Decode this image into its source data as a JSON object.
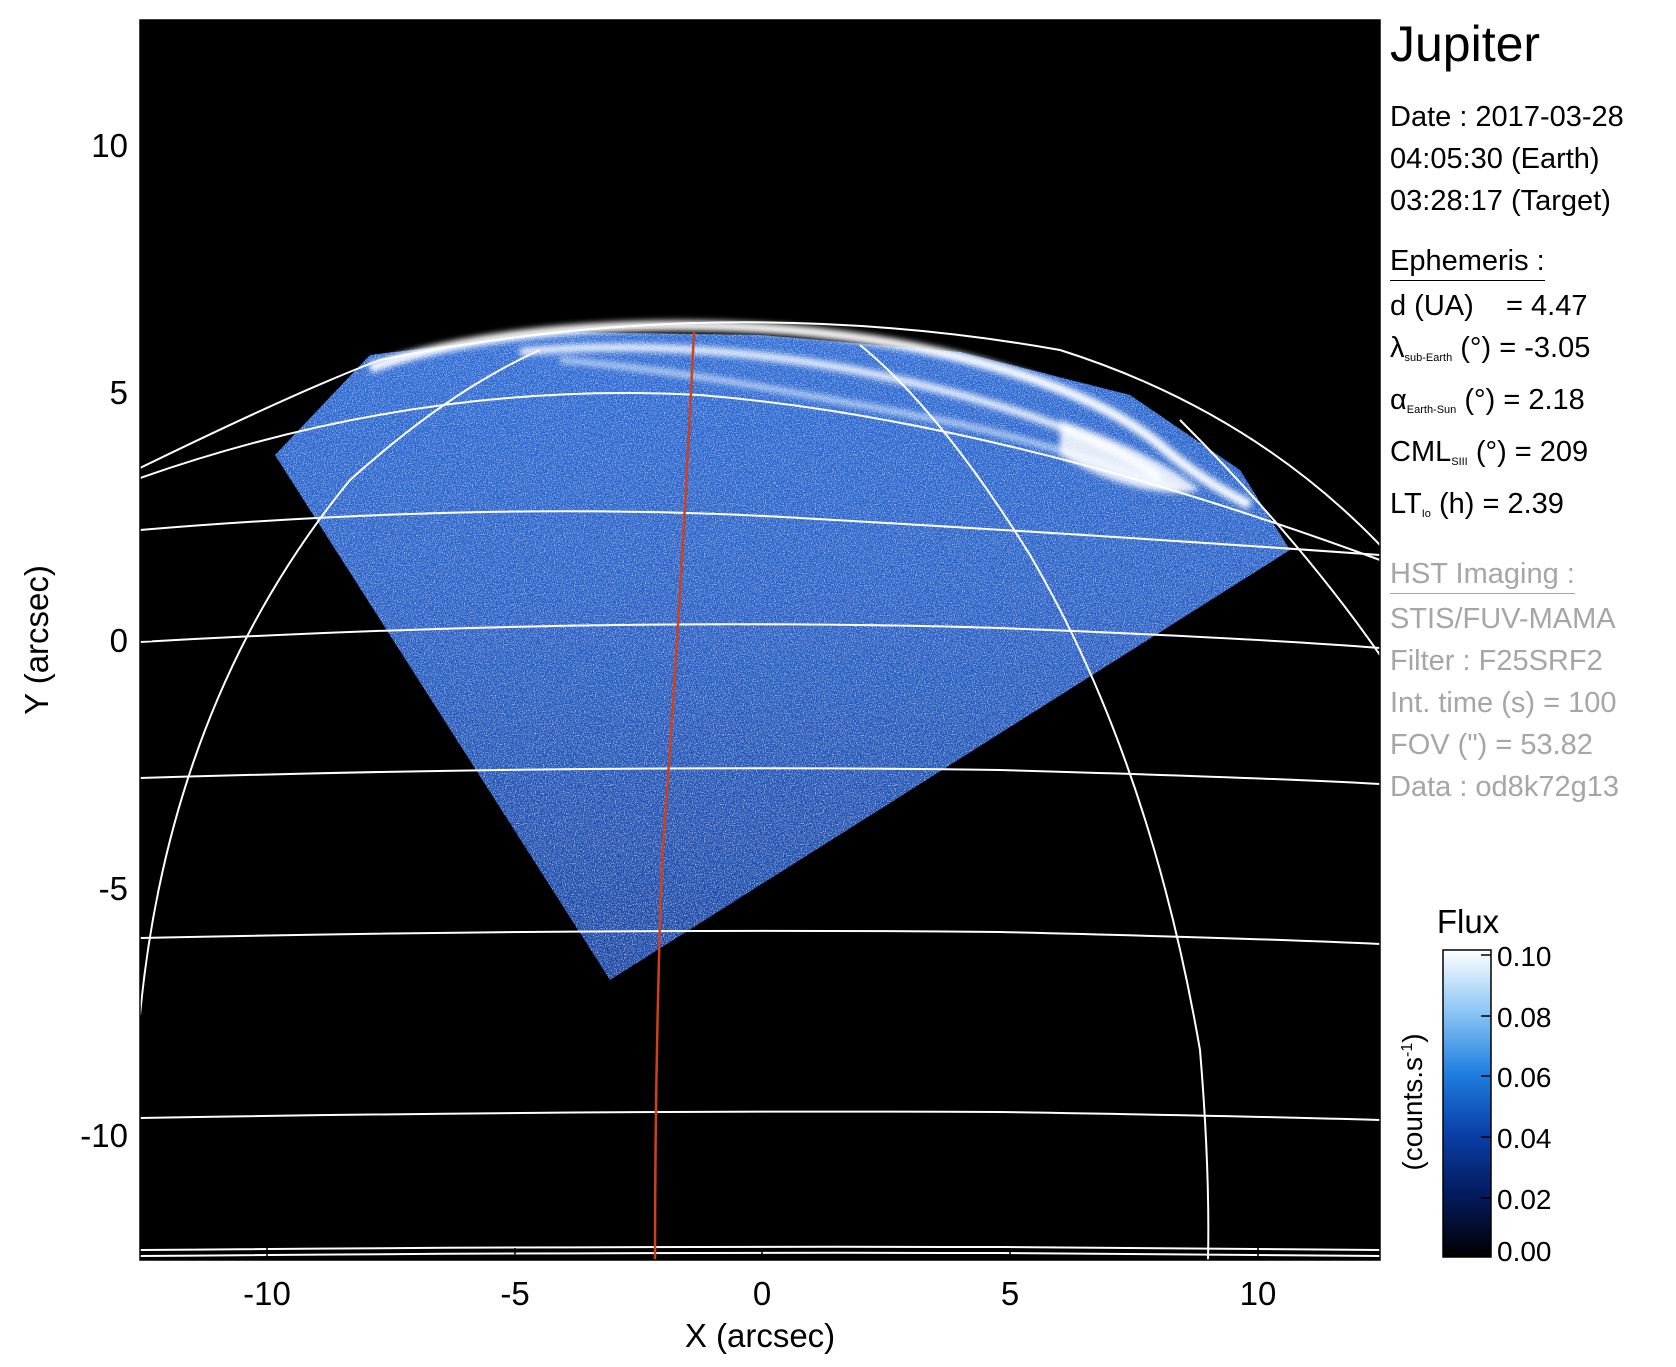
{
  "figure": {
    "x_axis_label": "X (arcsec)",
    "y_axis_label": "Y (arcsec)",
    "x_ticks": [
      "-10",
      "-5",
      "0",
      "5",
      "10"
    ],
    "y_ticks": [
      "10",
      "5",
      "0",
      "-5",
      "-10"
    ],
    "x_range": [
      -12.5,
      12.5
    ],
    "y_range": [
      -12.5,
      12.5
    ],
    "grid_color": "#ffffff",
    "meridian_color": "#d0401a",
    "background_color": "#000000",
    "emission_color": "#2a6bd6"
  },
  "info_panel": {
    "title": "Jupiter",
    "date_line": "Date : 2017-03-28",
    "time_earth": "04:05:30 (Earth)",
    "time_target": "03:28:17 (Target)",
    "ephemeris_heading": "Ephemeris :",
    "distance": {
      "label": "d (UA)",
      "value": "= 4.47"
    },
    "lambda": {
      "symbol": "λ",
      "subscript": "sub-Earth",
      "unit": "(°)",
      "value": "= -3.05"
    },
    "alpha": {
      "symbol": "α",
      "subscript": "Earth-Sun",
      "unit": "(°)",
      "value": "= 2.18"
    },
    "cml": {
      "symbol": "CML",
      "subscript": "SIII",
      "unit": "(°)",
      "value": "= 209"
    },
    "lt": {
      "symbol": "LT",
      "subscript": "Io",
      "unit": "(h)",
      "value": "= 2.39"
    },
    "hst_heading": "HST Imaging :",
    "instrument": "STIS/FUV-MAMA",
    "filter": "Filter : F25SRF2",
    "int_time": "Int. time (s) = 100",
    "fov": "FOV (\") = 53.82",
    "data_id": "Data : od8k72g13"
  },
  "colorbar": {
    "title": "Flux",
    "unit_label": "(counts.s",
    "unit_exp": "-1",
    "unit_close": ")",
    "ticks": [
      "0.10",
      "0.08",
      "0.06",
      "0.04",
      "0.02",
      "0.00"
    ],
    "range": [
      0.0,
      0.1
    ],
    "colors": [
      "#000000",
      "#031a5c",
      "#0a3fa8",
      "#1f7fe0",
      "#8cc6f5",
      "#ffffff"
    ]
  }
}
